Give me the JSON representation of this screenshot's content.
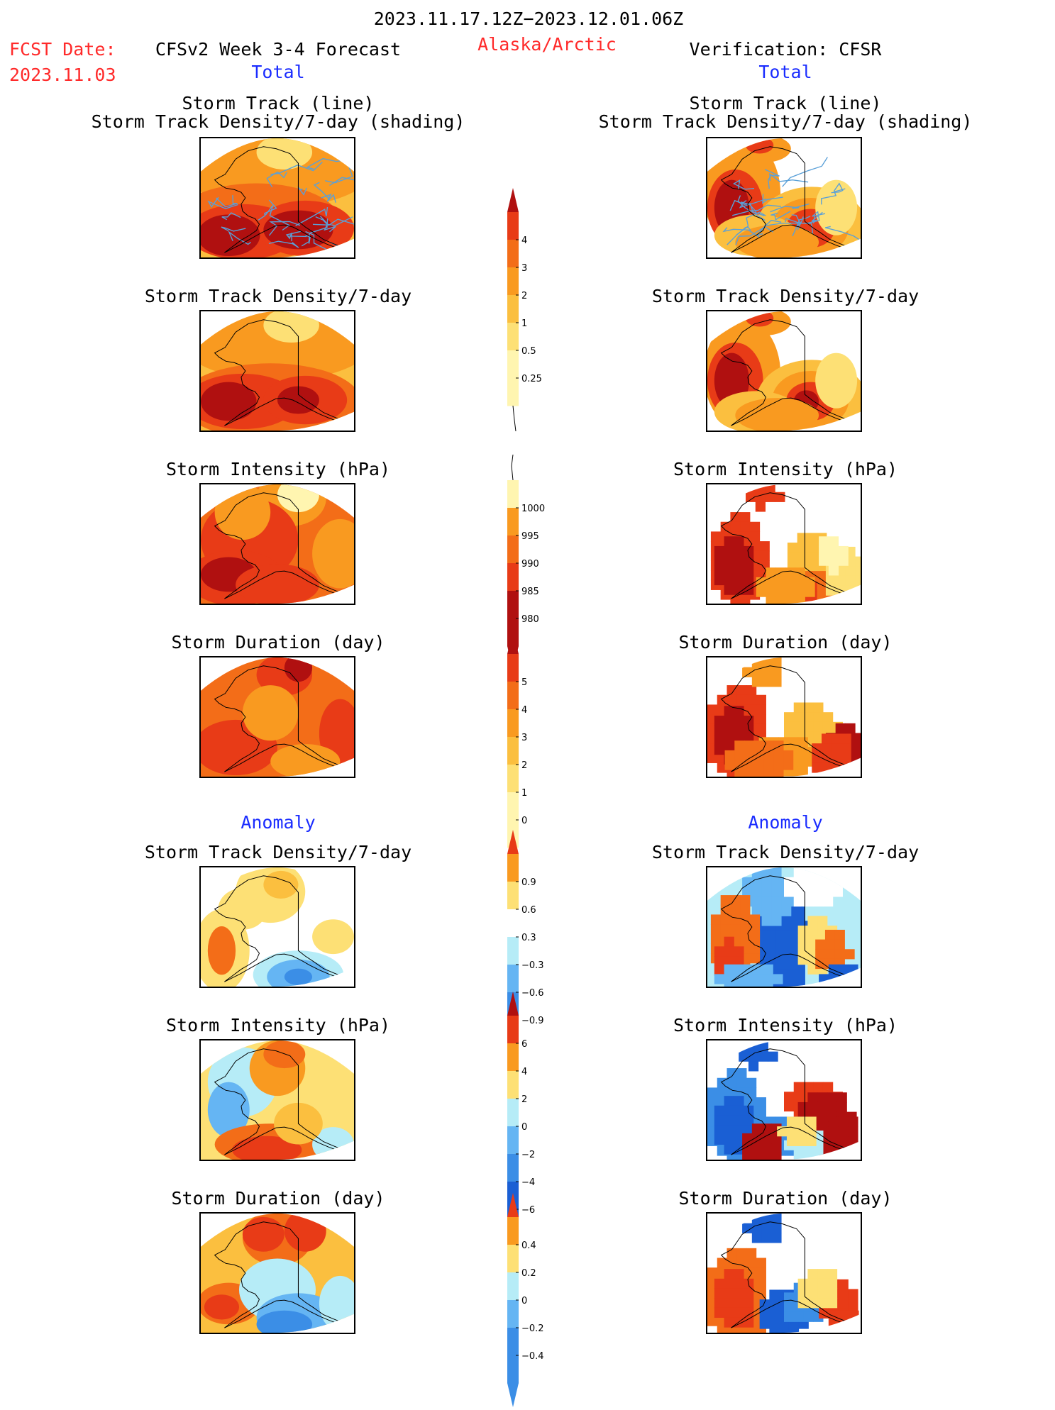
{
  "header": {
    "date_range": "2023.11.17.12Z−2023.12.01.06Z",
    "fcst_label": "FCST Date:",
    "fcst_date": "2023.11.03",
    "model_title": "CFSv2 Week 3-4 Forecast",
    "region": "Alaska/Arctic",
    "verification_title": "Verification: CFSR",
    "left_total": "Total",
    "right_total": "Total"
  },
  "sections": {
    "left_anomaly": "Anomaly",
    "right_anomaly": "Anomaly"
  },
  "panel_titles": {
    "track_line": "Storm Track (line)",
    "track_density_shading": "Storm Track Density/7-day (shading)",
    "track_density": "Storm Track Density/7-day",
    "intensity": "Storm Intensity (hPa)",
    "duration": "Storm Duration (day)"
  },
  "colors": {
    "c_white": "#ffffff",
    "c_lightyellow": "#fff5b0",
    "c_yellow": "#fde075",
    "c_gold": "#fbbf3f",
    "c_orange": "#f99a20",
    "c_darkorange": "#f36d18",
    "c_red": "#e83b17",
    "c_darkred": "#b01010",
    "c_lightblue": "#b6ecf7",
    "c_blue": "#65b5f3",
    "c_midblue": "#3b8ee6",
    "c_darkblue": "#1a5fd4",
    "track_line": "#5aa0d8",
    "title_red": "#ff2a2a",
    "title_blue": "#1a2cff"
  },
  "colorbars": {
    "density": [
      "4",
      "3",
      "2",
      "1",
      "0.5",
      "0.25"
    ],
    "intensity": [
      "1000",
      "995",
      "990",
      "985",
      "980"
    ],
    "duration": [
      "5",
      "4",
      "3",
      "2",
      "1",
      "0"
    ],
    "density_anom": [
      "0.9",
      "0.6",
      "0.3",
      "−0.3",
      "−0.6",
      "−0.9"
    ],
    "intensity_anom": [
      "6",
      "4",
      "2",
      "0",
      "−2",
      "−4",
      "−6"
    ],
    "duration_anom": [
      "0.4",
      "0.2",
      "0",
      "−0.2",
      "−0.4"
    ]
  }
}
